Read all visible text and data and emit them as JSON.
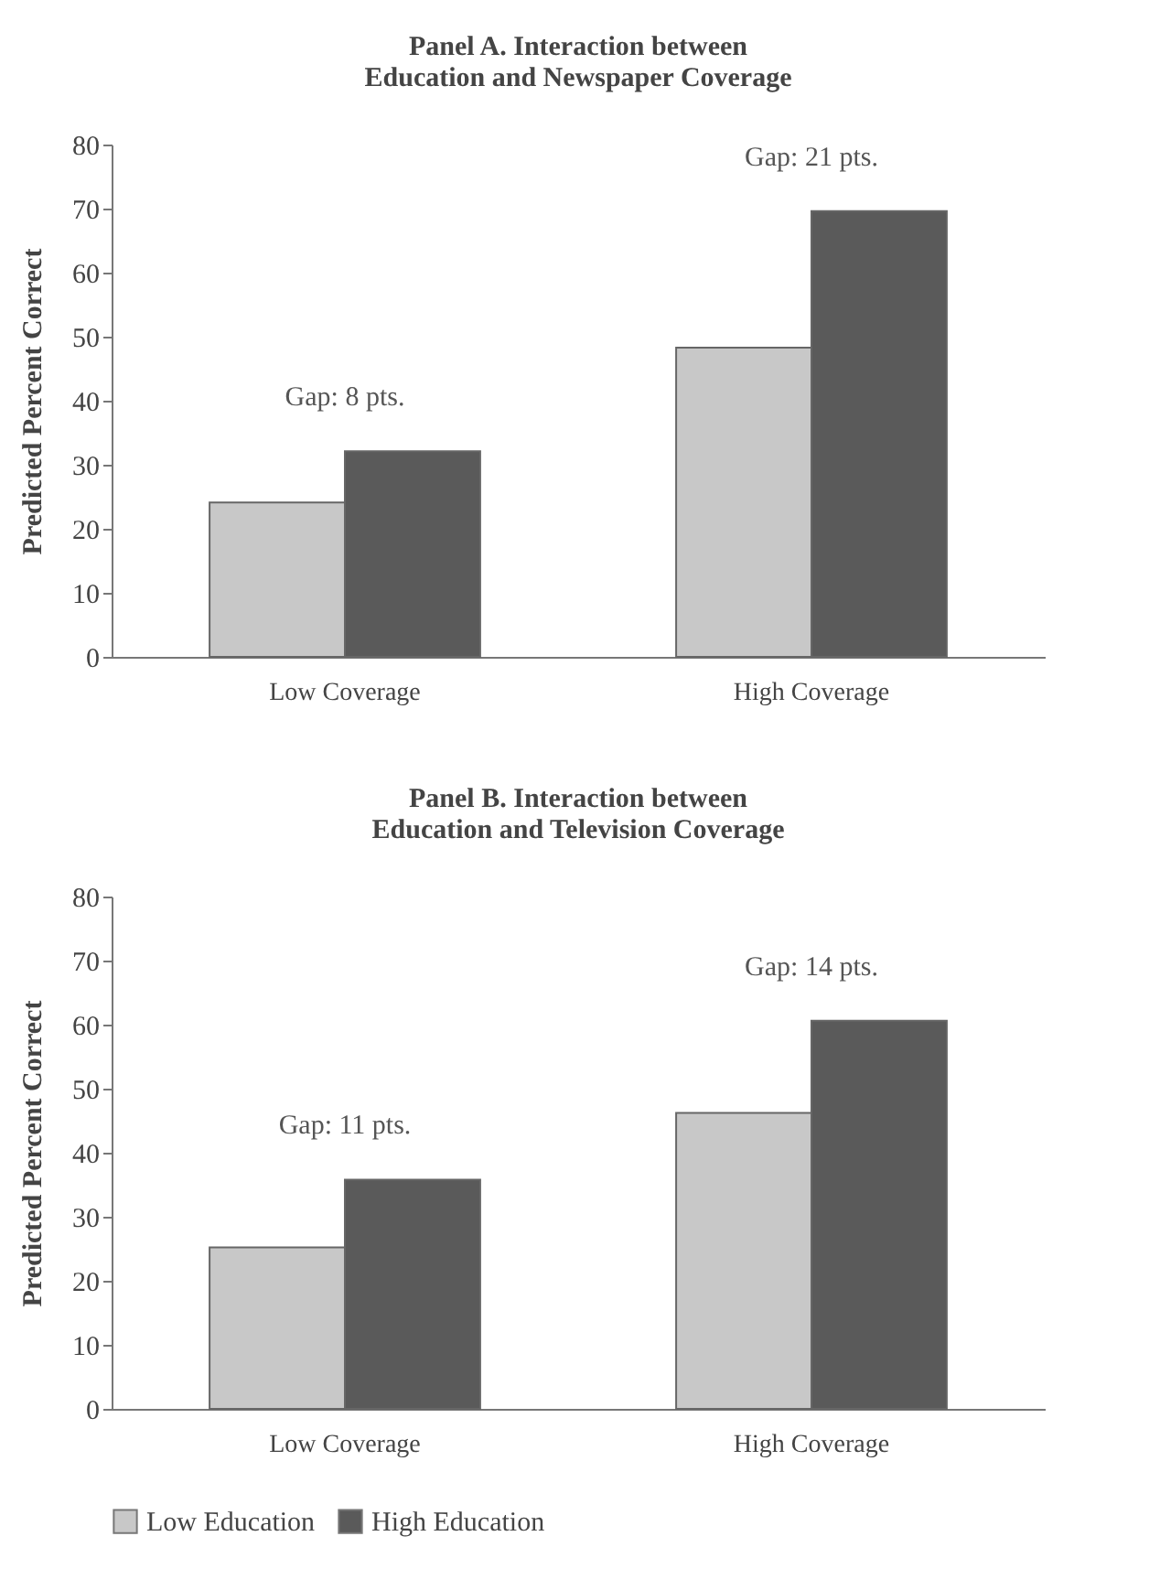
{
  "chart_data": [
    {
      "type": "bar",
      "title": "Panel A. Interaction between\nEducation and Newspaper Coverage",
      "ylabel": "Predicted Percent Correct",
      "categories": [
        "Low Coverage",
        "High Coverage"
      ],
      "series": [
        {
          "color": "#c8c8c8",
          "values": [
            24.1,
            48.3
          ]
        },
        {
          "color": "#5a5a5a",
          "values": [
            32.1,
            69.6
          ]
        }
      ],
      "ylim": [
        0,
        80
      ],
      "yticks": [
        0,
        10,
        20,
        30,
        40,
        50,
        60,
        70,
        80
      ],
      "grid": false,
      "legend": false,
      "annotations": [
        "Gap: 8 pts.",
        "Gap: 21 pts."
      ]
    },
    {
      "type": "bar",
      "title": "Panel B. Interaction between\nEducation and Television Coverage",
      "ylabel": "Predicted Percent Correct",
      "categories": [
        "Low Coverage",
        "High Coverage"
      ],
      "series": [
        {
          "name": "Low Education",
          "color": "#c8c8c8",
          "values": [
            25.2,
            46.2
          ]
        },
        {
          "name": "High Education",
          "color": "#5a5a5a",
          "values": [
            35.8,
            60.6
          ]
        }
      ],
      "ylim": [
        0,
        80
      ],
      "yticks": [
        0,
        10,
        20,
        30,
        40,
        50,
        60,
        70,
        80
      ],
      "grid": false,
      "legend": "bottom",
      "annotations": [
        "Gap: 11 pts.",
        "Gap: 14 pts."
      ]
    }
  ]
}
